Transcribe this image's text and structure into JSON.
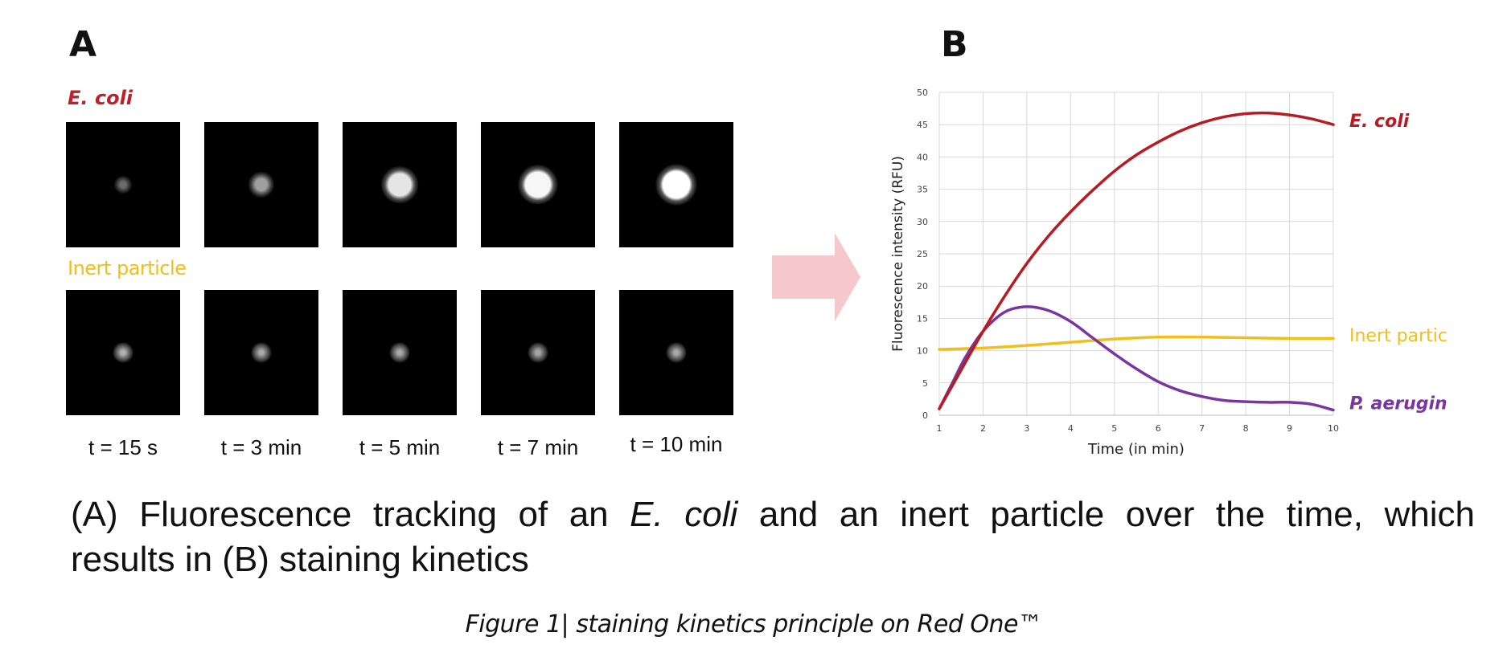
{
  "panel_a": {
    "letter": "A",
    "row1_label": "E. coli",
    "row2_label": "Inert particle",
    "time_labels": [
      "t = 15 s",
      "t = 3 min",
      "t = 5 min",
      "t = 7 min",
      "t = 10 min"
    ],
    "ecoli_brightness": [
      0.15,
      0.45,
      0.85,
      0.95,
      1.0
    ],
    "inert_brightness": [
      0.55,
      0.5,
      0.5,
      0.48,
      0.5
    ]
  },
  "panel_b": {
    "letter": "B",
    "colors": {
      "ecoli": "#b81c22",
      "inert": "#f2be1a",
      "paeruginosa": "#7a35a0",
      "arrow": "#f6c8cc"
    }
  },
  "chart_data": {
    "type": "line",
    "xlabel": "Time (in min)",
    "ylabel": "Fluorescence intensity (RFU)",
    "xlim": [
      1,
      10
    ],
    "ylim": [
      0,
      50
    ],
    "xticks": [
      1,
      2,
      3,
      4,
      5,
      6,
      7,
      8,
      9,
      10
    ],
    "yticks": [
      0,
      5,
      10,
      15,
      20,
      25,
      30,
      35,
      40,
      45,
      50
    ],
    "grid": true,
    "series": [
      {
        "name": "E. coli",
        "color": "#b81c22",
        "x": [
          1,
          1.5,
          2,
          2.5,
          3,
          3.5,
          4,
          4.5,
          5,
          5.5,
          6,
          6.5,
          7,
          7.5,
          8,
          8.5,
          9,
          9.5,
          10
        ],
        "y": [
          1,
          7,
          13,
          18.5,
          23.5,
          27.8,
          31.5,
          34.8,
          37.8,
          40.3,
          42.3,
          44,
          45.3,
          46.2,
          46.7,
          46.8,
          46.5,
          45.9,
          45
        ]
      },
      {
        "name": "Inert particle",
        "color": "#f2be1a",
        "x": [
          1,
          2,
          3,
          4,
          5,
          6,
          7,
          8,
          9,
          10
        ],
        "y": [
          10.2,
          10.4,
          10.8,
          11.3,
          11.8,
          12.1,
          12.1,
          12,
          11.9,
          11.9
        ]
      },
      {
        "name": "P. aeruginosa",
        "color": "#7a35a0",
        "x": [
          1,
          1.3,
          1.6,
          2,
          2.5,
          3,
          3.5,
          4,
          4.5,
          5,
          5.5,
          6,
          6.5,
          7,
          7.5,
          8,
          8.5,
          9,
          9.5,
          10
        ],
        "y": [
          1,
          5,
          9,
          13,
          16,
          16.8,
          16.2,
          14.5,
          12,
          9.5,
          7.2,
          5.2,
          3.8,
          2.9,
          2.3,
          2.1,
          2,
          2,
          1.7,
          0.8
        ]
      }
    ]
  },
  "caption": {
    "part1": "(A) Fluorescence tracking of an ",
    "italic": "E. coli",
    "part2": " and an inert particle over the time, which",
    "line2": "results in (B) staining kinetics"
  },
  "figure_caption": "Figure 1| staining kinetics principle on Red One™"
}
